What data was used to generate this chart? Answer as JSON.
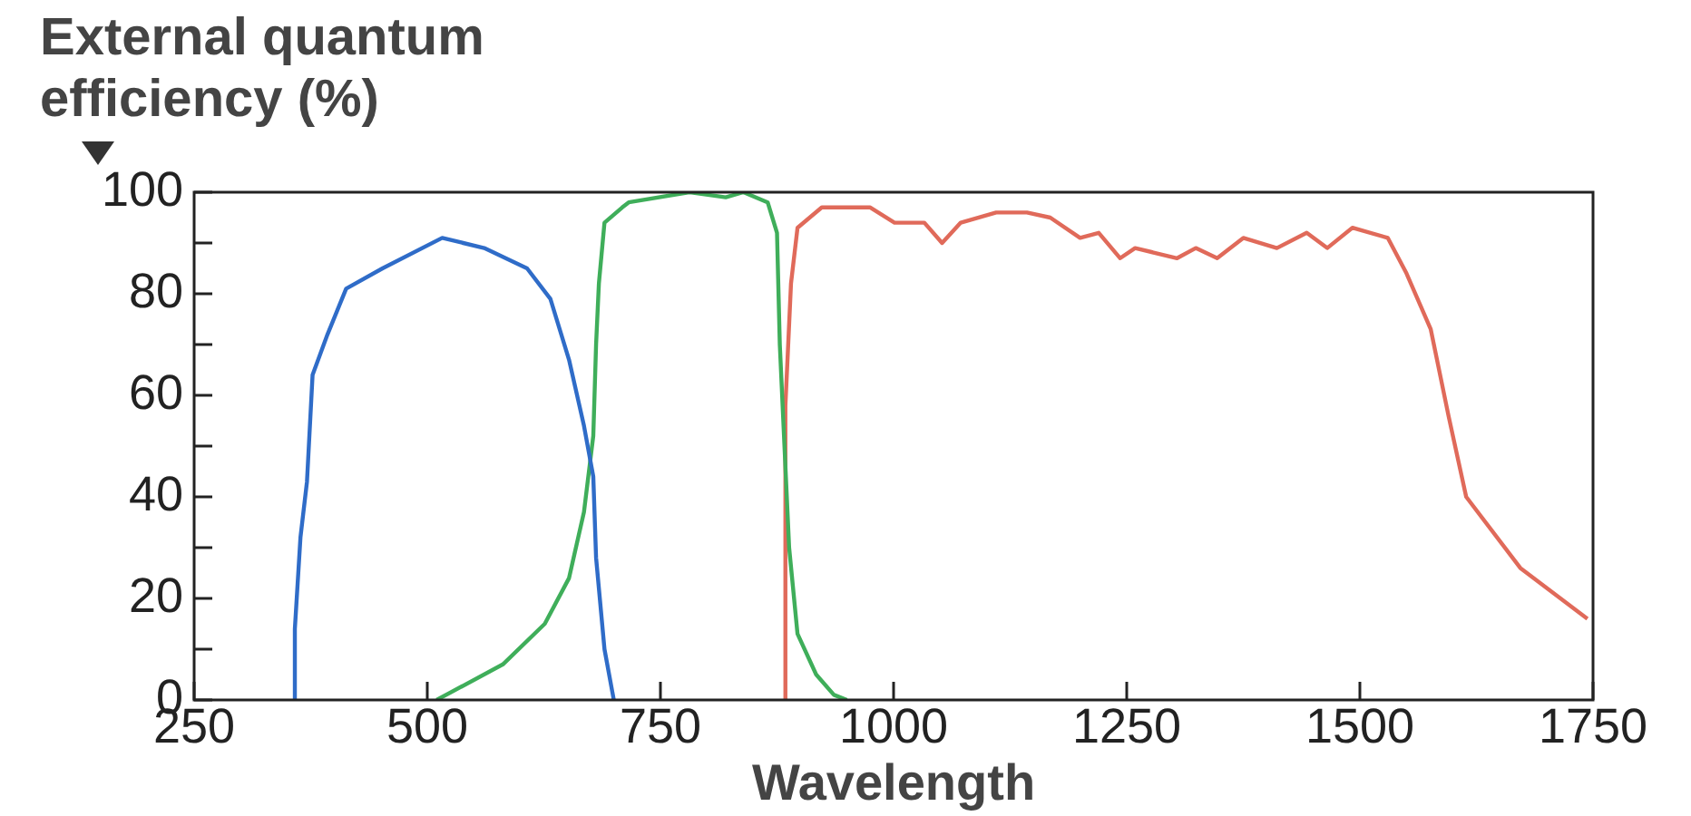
{
  "chart_data": {
    "type": "line",
    "ylabel": "External quantum efficiency (%)",
    "xlabel": "Wavelength",
    "xlim": [
      250,
      1750
    ],
    "xticks": [
      250,
      500,
      750,
      1000,
      1250,
      1500,
      1750
    ],
    "ylim": [
      0,
      100
    ],
    "yticks": [
      0,
      {
        "value": 10,
        "label": null
      },
      20,
      {
        "value": 30,
        "label": null
      },
      40,
      {
        "value": 50,
        "label": null
      },
      60,
      {
        "value": 70,
        "label": null
      },
      80,
      {
        "value": 90,
        "label": null
      },
      100
    ],
    "grid": false,
    "marker": "none",
    "line_style": "solid",
    "series": [
      {
        "color": "#2f6cc8",
        "x": [
          358,
          358,
          364,
          371,
          377,
          393,
          413,
          452,
          516,
          561,
          607,
          632,
          652,
          668,
          678,
          681,
          690,
          700
        ],
        "values": [
          0,
          14,
          32,
          43,
          64,
          72,
          81,
          85,
          91,
          89,
          85,
          79,
          67,
          54,
          44,
          28,
          10,
          0
        ]
      },
      {
        "color": "#3fae5a",
        "x": [
          510,
          581,
          626,
          652,
          668,
          678,
          681,
          684,
          690,
          709,
          716,
          781,
          820,
          839,
          865,
          875,
          878,
          888,
          897,
          917,
          936,
          950
        ],
        "values": [
          0,
          7,
          15,
          24,
          37,
          52,
          70,
          82,
          94,
          97,
          98,
          100,
          99,
          100,
          98,
          92,
          70,
          30,
          13,
          5,
          1,
          0
        ]
      },
      {
        "color": "#e06a5a",
        "x": [
          884,
          884,
          890,
          897,
          923,
          975,
          1001,
          1033,
          1052,
          1072,
          1110,
          1143,
          1168,
          1200,
          1220,
          1243,
          1259,
          1304,
          1324,
          1347,
          1375,
          1411,
          1443,
          1465,
          1492,
          1530,
          1550,
          1576,
          1595,
          1614,
          1672,
          1744
        ],
        "values": [
          0,
          58,
          82,
          93,
          97,
          97,
          94,
          94,
          90,
          94,
          96,
          96,
          95,
          91,
          92,
          87,
          89,
          87,
          89,
          87,
          91,
          89,
          92,
          89,
          93,
          91,
          84,
          73,
          56,
          40,
          26,
          16
        ]
      }
    ]
  }
}
